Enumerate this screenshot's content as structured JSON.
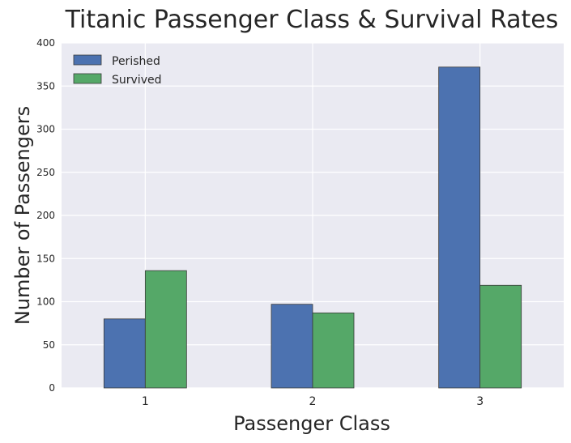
{
  "chart_data": {
    "type": "bar",
    "title": "Titanic Passenger Class & Survival Rates",
    "xlabel": "Passenger Class",
    "ylabel": "Number of Passengers",
    "categories": [
      "1",
      "2",
      "3"
    ],
    "series": [
      {
        "name": "Perished",
        "values": [
          80,
          97,
          372
        ],
        "color": "#4c72b0"
      },
      {
        "name": "Survived",
        "values": [
          136,
          87,
          119
        ],
        "color": "#55a868"
      }
    ],
    "ylim": [
      0,
      400
    ],
    "yticks": [
      0,
      50,
      100,
      150,
      200,
      250,
      300,
      350,
      400
    ],
    "grid": true,
    "legend_position": "top-left",
    "plot_background": "#eaeaf2",
    "grid_color": "#ffffff"
  }
}
